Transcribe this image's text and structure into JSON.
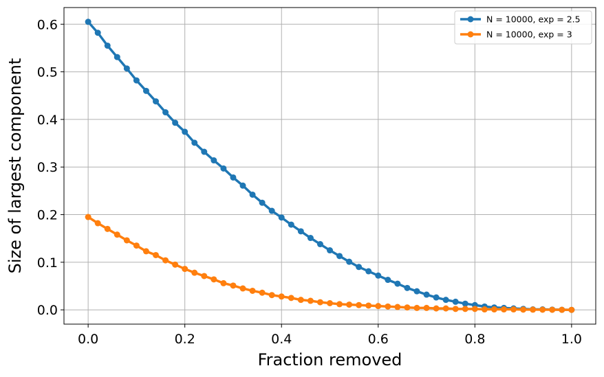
{
  "chart_data": {
    "type": "line",
    "title": "",
    "xlabel": "Fraction removed",
    "ylabel": "Size of largest component",
    "xlim": [
      -0.05,
      1.05
    ],
    "ylim": [
      -0.03,
      0.635
    ],
    "xticks": [
      0.0,
      0.2,
      0.4,
      0.6,
      0.8,
      1.0
    ],
    "xtick_labels": [
      "0.0",
      "0.2",
      "0.4",
      "0.6",
      "0.8",
      "1.0"
    ],
    "yticks": [
      0.0,
      0.1,
      0.2,
      0.3,
      0.4,
      0.5,
      0.6
    ],
    "ytick_labels": [
      "0.0",
      "0.1",
      "0.2",
      "0.3",
      "0.4",
      "0.5",
      "0.6"
    ],
    "grid": true,
    "legend_position": "top-right",
    "x": [
      0.0,
      0.02,
      0.04,
      0.06,
      0.08,
      0.1,
      0.12,
      0.14,
      0.16,
      0.18,
      0.2,
      0.22,
      0.24,
      0.26,
      0.28,
      0.3,
      0.32,
      0.34,
      0.36,
      0.38,
      0.4,
      0.42,
      0.44,
      0.46,
      0.48,
      0.5,
      0.52,
      0.54,
      0.56,
      0.58,
      0.6,
      0.62,
      0.64,
      0.66,
      0.68,
      0.7,
      0.72,
      0.74,
      0.76,
      0.78,
      0.8,
      0.82,
      0.84,
      0.86,
      0.88,
      0.9,
      0.92,
      0.94,
      0.96,
      0.98,
      1.0
    ],
    "series": [
      {
        "name": "N = 10000, exp = 2.5",
        "color": "#1f77b4",
        "values": [
          0.605,
          0.582,
          0.555,
          0.531,
          0.507,
          0.482,
          0.46,
          0.438,
          0.415,
          0.393,
          0.374,
          0.351,
          0.332,
          0.314,
          0.297,
          0.278,
          0.261,
          0.242,
          0.225,
          0.208,
          0.194,
          0.179,
          0.165,
          0.151,
          0.138,
          0.125,
          0.113,
          0.101,
          0.09,
          0.081,
          0.072,
          0.063,
          0.055,
          0.046,
          0.039,
          0.032,
          0.026,
          0.021,
          0.017,
          0.013,
          0.01,
          0.007,
          0.005,
          0.004,
          0.003,
          0.002,
          0.001,
          0.001,
          0.0005,
          0.0002,
          0.0
        ]
      },
      {
        "name": "N = 10000, exp = 3",
        "color": "#ff7f0e",
        "values": [
          0.195,
          0.182,
          0.17,
          0.158,
          0.146,
          0.135,
          0.123,
          0.115,
          0.104,
          0.095,
          0.086,
          0.078,
          0.071,
          0.064,
          0.056,
          0.051,
          0.045,
          0.04,
          0.036,
          0.031,
          0.028,
          0.025,
          0.021,
          0.019,
          0.016,
          0.014,
          0.012,
          0.011,
          0.01,
          0.009,
          0.008,
          0.007,
          0.006,
          0.005,
          0.004,
          0.004,
          0.003,
          0.003,
          0.002,
          0.002,
          0.002,
          0.001,
          0.001,
          0.001,
          0.001,
          0.0005,
          0.0004,
          0.0003,
          0.0002,
          0.0001,
          0.0
        ]
      }
    ]
  }
}
